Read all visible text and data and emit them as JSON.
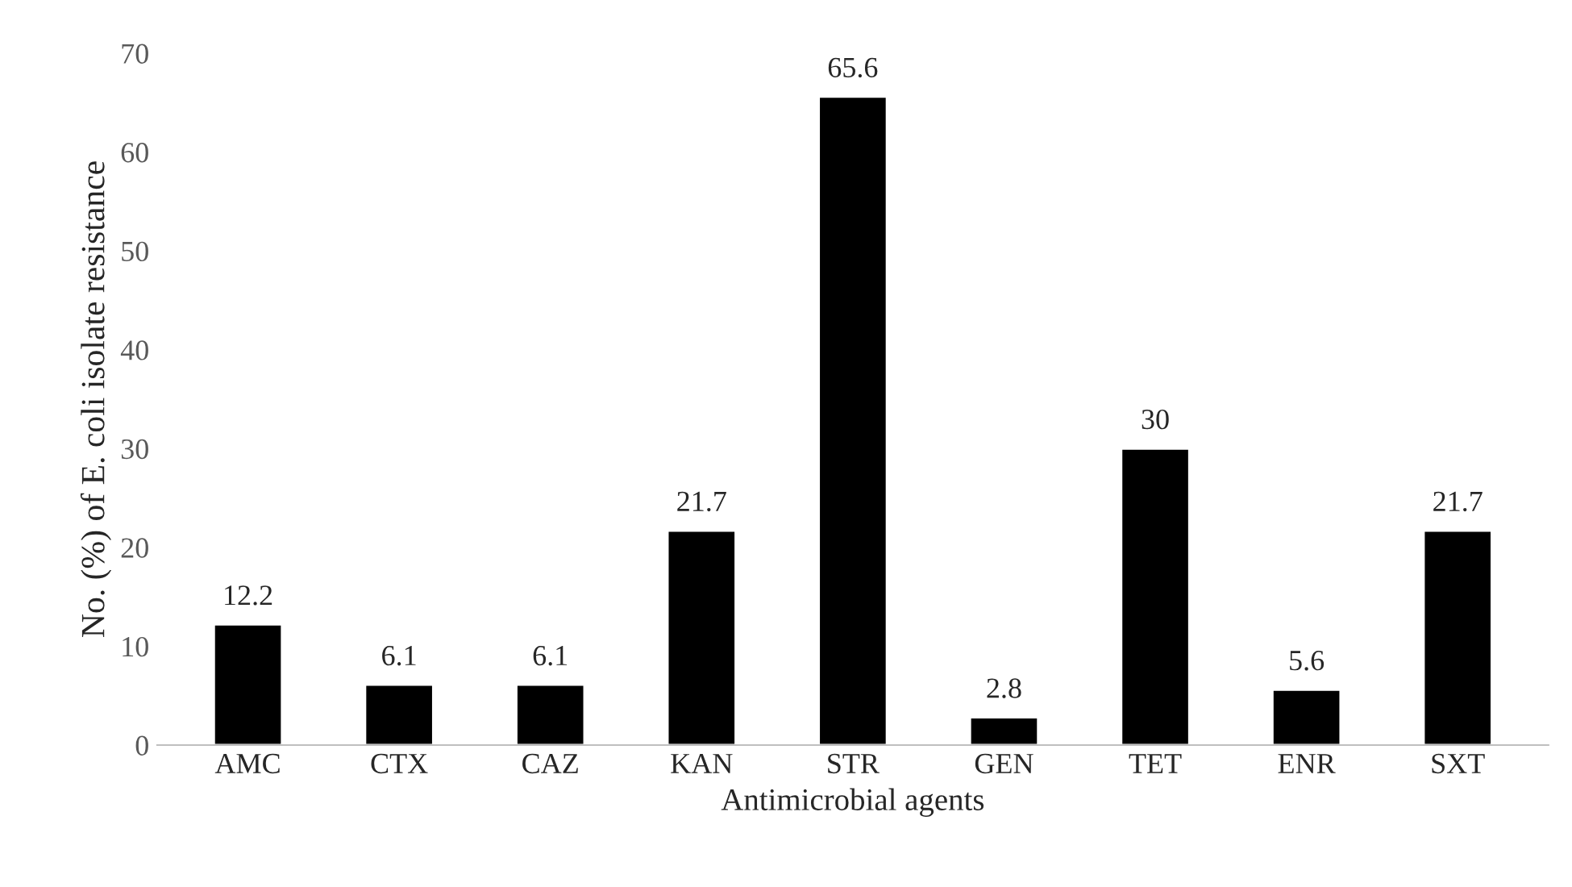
{
  "chart_data": {
    "type": "bar",
    "xlabel": "Antimicrobial agents",
    "ylabel": "No. (%) of E. coli isolate resistance",
    "categories": [
      "AMC",
      "CTX",
      "CAZ",
      "KAN",
      "STR",
      "GEN",
      "TET",
      "ENR",
      "SXT"
    ],
    "values": [
      12.2,
      6.1,
      6.1,
      21.7,
      65.6,
      2.8,
      30,
      5.6,
      21.7
    ],
    "color": "#000000",
    "ylim": [
      0,
      70
    ],
    "yticks": [
      0,
      10,
      20,
      30,
      40,
      50,
      60,
      70
    ],
    "data_labels": true,
    "grid": false
  }
}
